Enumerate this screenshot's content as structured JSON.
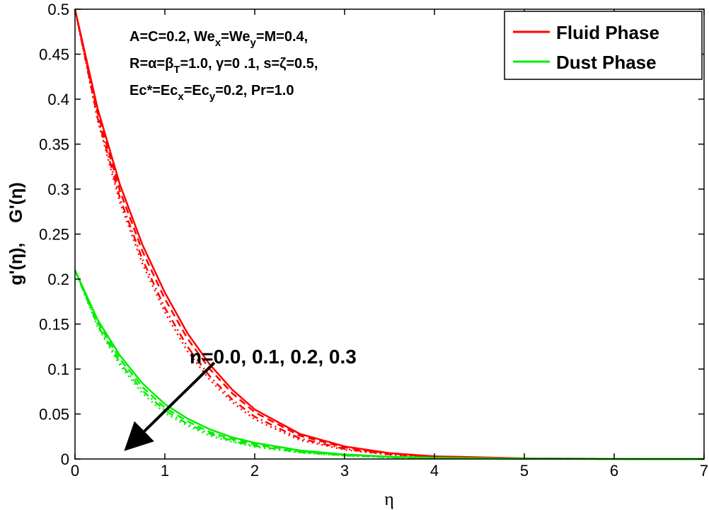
{
  "chart_data": {
    "type": "line",
    "title": "",
    "xlabel": "η",
    "ylabel": {
      "part1": "g'(η),",
      "part2": "G'(η)"
    },
    "xlim": [
      0,
      7
    ],
    "ylim": [
      0,
      0.5
    ],
    "xticks": [
      0,
      1,
      2,
      3,
      4,
      5,
      6,
      7
    ],
    "xtick_labels": [
      "0",
      "1",
      "2",
      "3",
      "4",
      "5",
      "6",
      "7"
    ],
    "yticks": [
      0,
      0.05,
      0.1,
      0.15,
      0.2,
      0.25,
      0.3,
      0.35,
      0.4,
      0.45,
      0.5
    ],
    "ytick_labels": [
      "0",
      "0.05",
      "0.1",
      "0.15",
      "0.2",
      "0.25",
      "0.3",
      "0.35",
      "0.4",
      "0.45",
      "0.5"
    ],
    "grid": false,
    "legend_position": "top-right",
    "legend": [
      {
        "label": "Fluid Phase",
        "color": "#ff0000"
      },
      {
        "label": "Dust Phase",
        "color": "#00ee00"
      }
    ],
    "params": {
      "line1": {
        "a": "A=C=0.2, We",
        "a_sub": "x",
        "b": "=We",
        "b_sub": "y",
        "c": "=M=0.4,"
      },
      "line2": {
        "a": "R=α=β",
        "a_sub": "T",
        "b": "=1.0, γ=0 .1, s=ζ=0.5,"
      },
      "line3": {
        "a": "Ec*=Ec",
        "a_sub": "x",
        "b": "=Ec",
        "b_sub": "y",
        "c": "=0.2, Pr=1.0"
      }
    },
    "annotation": {
      "text": "n=0.0, 0.1, 0.2, 0.3",
      "arrow_from": [
        1.55,
        0.107
      ],
      "arrow_to": [
        0.58,
        0.012
      ]
    },
    "series": [
      {
        "group": "fluid",
        "n": 0.0,
        "color": "#ff0000",
        "dash": "solid",
        "x": [
          0,
          0.25,
          0.5,
          0.75,
          1,
          1.25,
          1.5,
          1.75,
          2,
          2.5,
          3,
          3.5,
          4,
          5,
          6,
          7
        ],
        "y": [
          0.5,
          0.39,
          0.305,
          0.238,
          0.185,
          0.14,
          0.105,
          0.077,
          0.055,
          0.028,
          0.014,
          0.0065,
          0.003,
          0.0007,
          0.00015,
          0.0
        ]
      },
      {
        "group": "fluid",
        "n": 0.1,
        "color": "#ff0000",
        "dash": "dashed",
        "x": [
          0,
          0.25,
          0.5,
          0.75,
          1,
          1.25,
          1.5,
          1.75,
          2,
          2.5,
          3,
          3.5,
          4,
          5,
          6,
          7
        ],
        "y": [
          0.5,
          0.385,
          0.298,
          0.231,
          0.178,
          0.134,
          0.1,
          0.073,
          0.052,
          0.026,
          0.0128,
          0.006,
          0.0027,
          0.0006,
          0.00012,
          0.0
        ]
      },
      {
        "group": "fluid",
        "n": 0.2,
        "color": "#ff0000",
        "dash": "dashdot",
        "x": [
          0,
          0.25,
          0.5,
          0.75,
          1,
          1.25,
          1.5,
          1.75,
          2,
          2.5,
          3,
          3.5,
          4,
          5,
          6,
          7
        ],
        "y": [
          0.5,
          0.38,
          0.29,
          0.222,
          0.168,
          0.125,
          0.092,
          0.066,
          0.047,
          0.023,
          0.0112,
          0.0052,
          0.0024,
          0.0005,
          0.0001,
          0.0
        ]
      },
      {
        "group": "fluid",
        "n": 0.3,
        "color": "#ff0000",
        "dash": "dotted",
        "x": [
          0,
          0.25,
          0.5,
          0.75,
          1,
          1.25,
          1.5,
          1.75,
          2,
          2.5,
          3,
          3.5,
          4,
          5,
          6,
          7
        ],
        "y": [
          0.5,
          0.377,
          0.285,
          0.217,
          0.163,
          0.12,
          0.088,
          0.063,
          0.044,
          0.021,
          0.0102,
          0.0047,
          0.0021,
          0.0004,
          0.0001,
          0.0
        ]
      },
      {
        "group": "dust",
        "n": 0.0,
        "color": "#00ee00",
        "dash": "solid",
        "x": [
          0,
          0.25,
          0.5,
          0.75,
          1,
          1.25,
          1.5,
          1.75,
          2,
          2.5,
          3,
          3.5,
          4,
          5,
          6,
          7
        ],
        "y": [
          0.21,
          0.155,
          0.115,
          0.084,
          0.061,
          0.045,
          0.033,
          0.024,
          0.018,
          0.0095,
          0.005,
          0.0026,
          0.0013,
          0.0003,
          0.0001,
          0.0
        ]
      },
      {
        "group": "dust",
        "n": 0.1,
        "color": "#00ee00",
        "dash": "dashed",
        "x": [
          0,
          0.25,
          0.5,
          0.75,
          1,
          1.25,
          1.5,
          1.75,
          2,
          2.5,
          3,
          3.5,
          4,
          5,
          6,
          7
        ],
        "y": [
          0.21,
          0.152,
          0.111,
          0.08,
          0.057,
          0.042,
          0.03,
          0.022,
          0.016,
          0.0085,
          0.0044,
          0.0023,
          0.0011,
          0.0003,
          0.0001,
          0.0
        ]
      },
      {
        "group": "dust",
        "n": 0.2,
        "color": "#00ee00",
        "dash": "dashdot",
        "x": [
          0,
          0.25,
          0.5,
          0.75,
          1,
          1.25,
          1.5,
          1.75,
          2,
          2.5,
          3,
          3.5,
          4,
          5,
          6,
          7
        ],
        "y": [
          0.21,
          0.149,
          0.107,
          0.076,
          0.054,
          0.039,
          0.028,
          0.02,
          0.0145,
          0.0076,
          0.0039,
          0.002,
          0.001,
          0.0002,
          0.0,
          0.0
        ]
      },
      {
        "group": "dust",
        "n": 0.3,
        "color": "#00ee00",
        "dash": "dotted",
        "x": [
          0,
          0.25,
          0.5,
          0.75,
          1,
          1.25,
          1.5,
          1.75,
          2,
          2.5,
          3,
          3.5,
          4,
          5,
          6,
          7
        ],
        "y": [
          0.21,
          0.147,
          0.104,
          0.073,
          0.051,
          0.037,
          0.026,
          0.019,
          0.0135,
          0.007,
          0.0036,
          0.0018,
          0.0009,
          0.0002,
          0.0,
          0.0
        ]
      }
    ]
  }
}
